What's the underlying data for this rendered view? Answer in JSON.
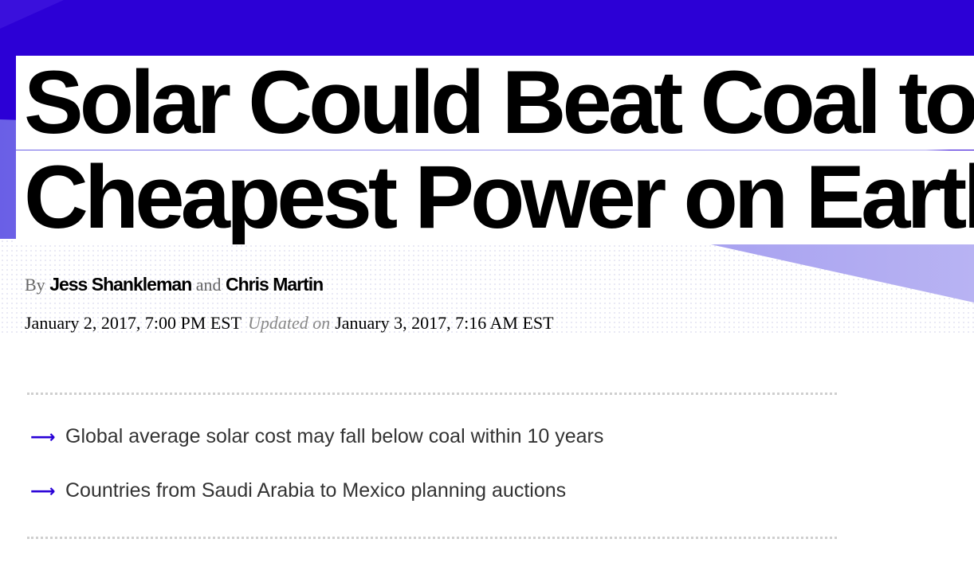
{
  "headline": {
    "line1": "Solar Could Beat Coal to Become the",
    "line2": "Cheapest Power on Earth"
  },
  "byline": {
    "by": "By",
    "author1": "Jess Shankleman",
    "and": "and",
    "author2": "Chris Martin"
  },
  "dateline": {
    "published": "January 2, 2017, 7:00 PM EST",
    "updated_label": "Updated on",
    "updated": "January 3, 2017, 7:16 AM EST"
  },
  "bullets": [
    "Global average solar cost may fall below coal within 10 years",
    "Countries from Saudi Arabia to Mexico planning auctions"
  ],
  "icons": {
    "bullet_arrow": "arrow-right-icon"
  },
  "colors": {
    "accent": "#2800d7",
    "hero_light": "#a39ef0"
  }
}
